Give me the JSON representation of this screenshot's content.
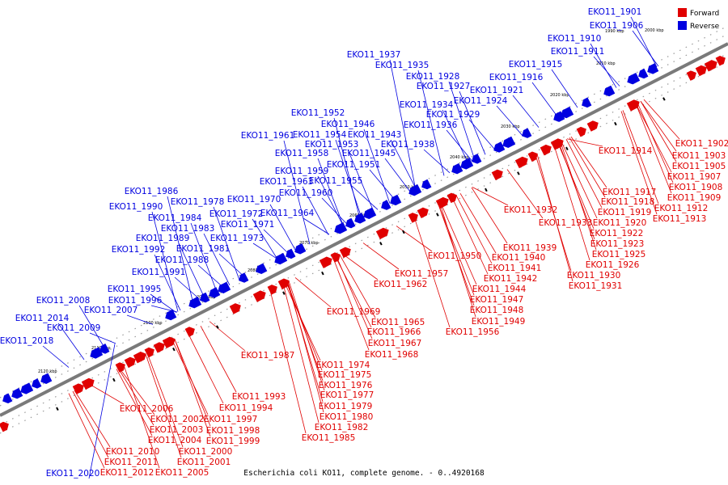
{
  "title": "Escherichia coli KO11, complete genome. - 0..4920168",
  "colors": {
    "forward": "#e00000",
    "reverse": "#0000e0",
    "backbone": "#7a7a7a"
  },
  "legend": [
    {
      "label": "Forward",
      "color": "#e00000"
    },
    {
      "label": "Reverse",
      "color": "#0000e0"
    }
  ],
  "ticks": [
    "1990 kbp",
    "2000 kbp",
    "2010 kbp",
    "2020 kbp",
    "2030 kbp",
    "2040 kbp",
    "2050 kbp",
    "2060 kbp",
    "2070 kbp",
    "2080 kbp",
    "2090 kbp",
    "2100 kbp",
    "2110 kbp",
    "2120 kbp"
  ],
  "reverse_genes": [
    "EKO11_1901",
    "EKO11_1906",
    "EKO11_1910",
    "EKO11_1911",
    "EKO11_1915",
    "EKO11_1916",
    "EKO11_1921",
    "EKO11_1924",
    "EKO11_1927",
    "EKO11_1928",
    "EKO11_1929",
    "EKO11_1934",
    "EKO11_1935",
    "EKO11_1936",
    "EKO11_1937",
    "EKO11_1938",
    "EKO11_1943",
    "EKO11_1945",
    "EKO11_1946",
    "EKO11_1951",
    "EKO11_1952",
    "EKO11_1953",
    "EKO11_1954",
    "EKO11_1955",
    "EKO11_1958",
    "EKO11_1959",
    "EKO11_1960",
    "EKO11_1961",
    "EKO11_1963",
    "EKO11_1964",
    "EKO11_1970",
    "EKO11_1971",
    "EKO11_1972",
    "EKO11_1973",
    "EKO11_1978",
    "EKO11_1981",
    "EKO11_1983",
    "EKO11_1984",
    "EKO11_1986",
    "EKO11_1988",
    "EKO11_1989",
    "EKO11_1990",
    "EKO11_1991",
    "EKO11_1992",
    "EKO11_1995",
    "EKO11_1996",
    "EKO11_2007",
    "EKO11_2008",
    "EKO11_2009",
    "EKO11_2014",
    "EKO11_2018",
    "EKO11_2020"
  ],
  "forward_genes": [
    "EKO11_1902",
    "EKO11_1903",
    "EKO11_1905",
    "EKO11_1907",
    "EKO11_1908",
    "EKO11_1909",
    "EKO11_1912",
    "EKO11_1913",
    "EKO11_1914",
    "EKO11_1917",
    "EKO11_1918",
    "EKO11_1919",
    "EKO11_1920",
    "EKO11_1922",
    "EKO11_1923",
    "EKO11_1925",
    "EKO11_1926",
    "EKO11_1930",
    "EKO11_1931",
    "EKO11_1932",
    "EKO11_1933",
    "EKO11_1939",
    "EKO11_1940",
    "EKO11_1941",
    "EKO11_1942",
    "EKO11_1944",
    "EKO11_1947",
    "EKO11_1948",
    "EKO11_1949",
    "EKO11_1950",
    "EKO11_1956",
    "EKO11_1957",
    "EKO11_1962",
    "EKO11_1965",
    "EKO11_1966",
    "EKO11_1967",
    "EKO11_1968",
    "EKO11_1969",
    "EKO11_1974",
    "EKO11_1975",
    "EKO11_1976",
    "EKO11_1977",
    "EKO11_1979",
    "EKO11_1980",
    "EKO11_1982",
    "EKO11_1985",
    "EKO11_1987",
    "EKO11_1993",
    "EKO11_1994",
    "EKO11_1997",
    "EKO11_1998",
    "EKO11_1999",
    "EKO11_2000",
    "EKO11_2001",
    "EKO11_2002",
    "EKO11_2003",
    "EKO11_2004",
    "EKO11_2005",
    "EKO11_2006",
    "EKO11_2010",
    "EKO11_2011",
    "EKO11_2012"
  ]
}
